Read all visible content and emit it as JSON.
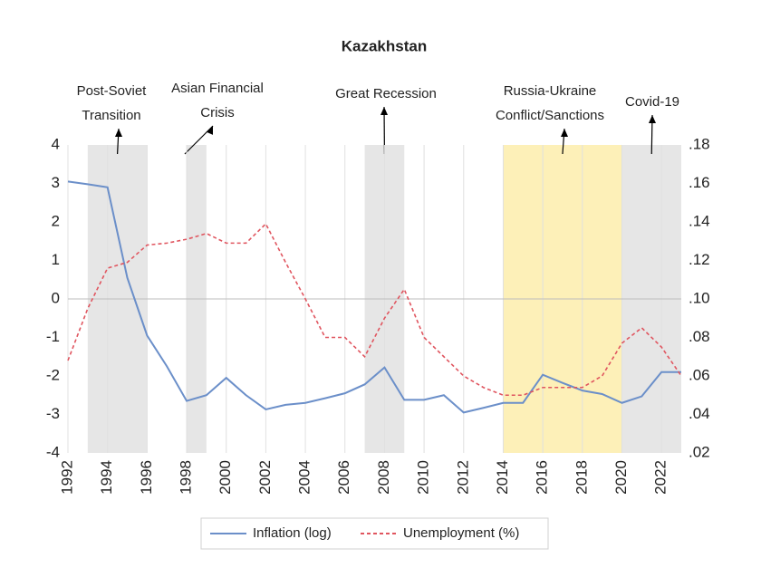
{
  "chart_data": {
    "type": "line",
    "title": "Kazakhstan",
    "x": [
      1992,
      1993,
      1994,
      1995,
      1996,
      1997,
      1998,
      1999,
      2000,
      2001,
      2002,
      2003,
      2004,
      2005,
      2006,
      2007,
      2008,
      2009,
      2010,
      2011,
      2012,
      2013,
      2014,
      2015,
      2016,
      2017,
      2018,
      2019,
      2020,
      2021,
      2022,
      2023
    ],
    "xlim": [
      1992,
      2023
    ],
    "xticks": [
      1992,
      1994,
      1996,
      1998,
      2000,
      2002,
      2004,
      2006,
      2008,
      2010,
      2012,
      2014,
      2016,
      2018,
      2020,
      2022
    ],
    "ylim": [
      -4,
      4
    ],
    "yticks": [
      -4,
      -3,
      -2,
      -1,
      0,
      1,
      2,
      3,
      4
    ],
    "y2lim": [
      0.02,
      0.18
    ],
    "y2ticks": [
      {
        "value": 0.02,
        "label": ".02"
      },
      {
        "value": 0.04,
        "label": ".04"
      },
      {
        "value": 0.06,
        "label": ".06"
      },
      {
        "value": 0.08,
        "label": ".08"
      },
      {
        "value": 0.1,
        "label": ".10"
      },
      {
        "value": 0.12,
        "label": ".12"
      },
      {
        "value": 0.14,
        "label": ".14"
      },
      {
        "value": 0.16,
        "label": ".16"
      },
      {
        "value": 0.18,
        "label": ".18"
      }
    ],
    "grid": "x",
    "zero_line": true,
    "legend": "bottom",
    "series": [
      {
        "name": "Inflation (log)",
        "color": "#6b8fc9",
        "dash": "solid",
        "values": [
          3.05,
          2.98,
          2.9,
          0.55,
          -0.95,
          -1.75,
          -2.65,
          -2.5,
          -2.05,
          -2.5,
          -2.87,
          -2.75,
          -2.7,
          -2.58,
          -2.45,
          -2.22,
          -1.78,
          -2.62,
          -2.62,
          -2.5,
          -2.95,
          -2.83,
          -2.7,
          -2.7,
          -1.97,
          -2.18,
          -2.38,
          -2.47,
          -2.7,
          -2.53,
          -1.9,
          -1.9
        ]
      },
      {
        "name": "Unemployment (%)",
        "color": "#e0555f",
        "dash": "dashed",
        "axis": "y2",
        "values": [
          0.068,
          0.095,
          0.116,
          0.119,
          0.128,
          0.129,
          0.131,
          0.134,
          0.129,
          0.129,
          0.139,
          0.119,
          0.1,
          0.08,
          0.08,
          0.07,
          0.09,
          0.105,
          0.08,
          0.07,
          0.06,
          0.054,
          0.05,
          0.05,
          0.054,
          0.054,
          0.054,
          0.06,
          0.077,
          0.085,
          0.075,
          0.06
        ]
      }
    ],
    "periods": [
      {
        "lines": [
          "Post-Soviet",
          "Transition"
        ],
        "start": 1993,
        "end": 1996,
        "color": "#e6e6e6"
      },
      {
        "lines": [
          "Asian Financial",
          "Crisis"
        ],
        "start": 1998,
        "end": 1999,
        "color": "#e6e6e6"
      },
      {
        "lines": [
          "Great Recession"
        ],
        "start": 2007,
        "end": 2009,
        "color": "#e6e6e6"
      },
      {
        "lines": [
          "Russia-Ukraine",
          "Conflict/Sanctions"
        ],
        "start": 2014,
        "end": 2020,
        "color": "#fdf0b8"
      },
      {
        "lines": [
          "Covid-19"
        ],
        "start": 2020,
        "end": 2023,
        "color": "#e6e6e6"
      }
    ]
  }
}
